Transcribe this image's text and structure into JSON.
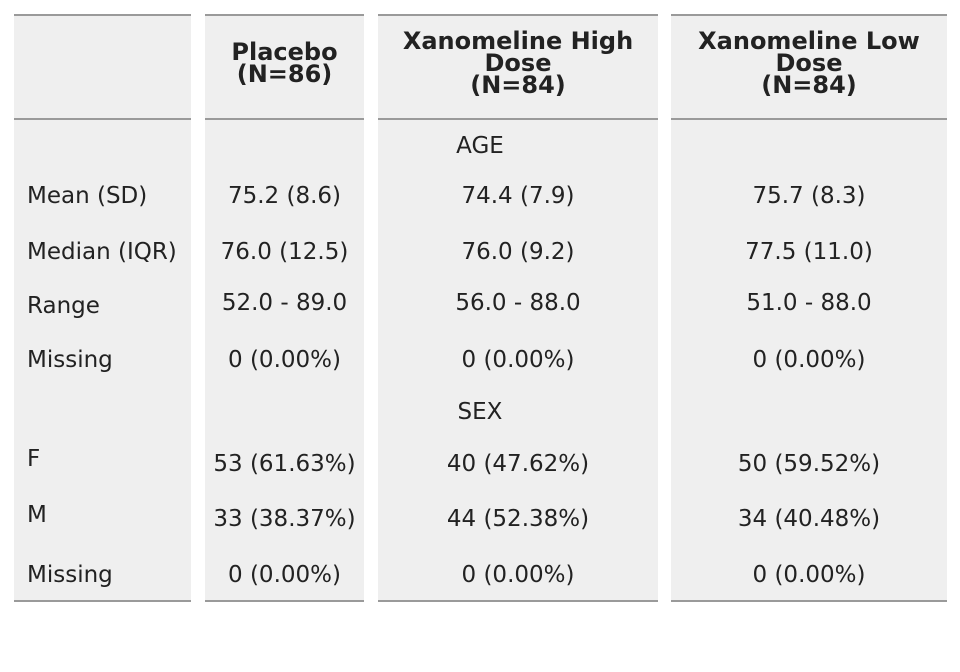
{
  "table": {
    "headers": [
      {
        "line1": "Placebo",
        "line2": "(N=86)",
        "line3": ""
      },
      {
        "line1": "Xanomeline High",
        "line2": "Dose",
        "line3": "(N=84)"
      },
      {
        "line1": "Xanomeline Low",
        "line2": "Dose",
        "line3": "(N=84)"
      }
    ],
    "sections": [
      {
        "title": "AGE",
        "rows": [
          {
            "label": "Mean (SD)",
            "values": [
              "75.2 (8.6)",
              "74.4 (7.9)",
              "75.7 (8.3)"
            ]
          },
          {
            "label": "Median (IQR)",
            "values": [
              "76.0 (12.5)",
              "76.0 (9.2)",
              "77.5 (11.0)"
            ]
          },
          {
            "label": "Range",
            "values": [
              "52.0 - 89.0",
              "56.0 - 88.0",
              "51.0 - 88.0"
            ]
          },
          {
            "label": "Missing",
            "values": [
              "0 (0.00%)",
              "0 (0.00%)",
              "0 (0.00%)"
            ]
          }
        ]
      },
      {
        "title": "SEX",
        "rows": [
          {
            "label": "F",
            "values": [
              "53 (61.63%)",
              "40 (47.62%)",
              "50 (59.52%)"
            ]
          },
          {
            "label": "M",
            "values": [
              "33 (38.37%)",
              "44 (52.38%)",
              "34 (40.48%)"
            ]
          },
          {
            "label": "Missing",
            "values": [
              "0 (0.00%)",
              "0 (0.00%)",
              "0 (0.00%)"
            ]
          }
        ]
      }
    ]
  }
}
